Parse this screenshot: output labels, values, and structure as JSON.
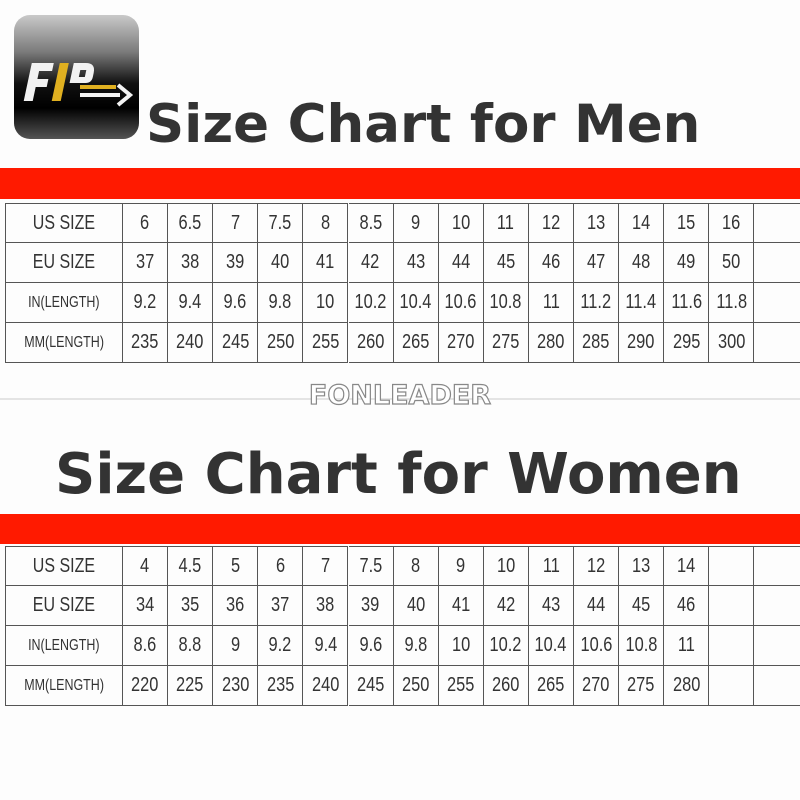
{
  "logo": {
    "text": "FLD"
  },
  "watermark": "FONLEADER",
  "colors": {
    "band": "#ff1a00",
    "title": "#333333",
    "grid": "#555555"
  },
  "men": {
    "title": "Size Chart for Men",
    "rows": [
      {
        "label": "US SIZE",
        "values": [
          "6",
          "6.5",
          "7",
          "7.5",
          "8",
          "8.5",
          "9",
          "10",
          "11",
          "12",
          "13",
          "14",
          "15",
          "16"
        ]
      },
      {
        "label": "EU SIZE",
        "values": [
          "37",
          "38",
          "39",
          "40",
          "41",
          "42",
          "43",
          "44",
          "45",
          "46",
          "47",
          "48",
          "49",
          "50"
        ]
      },
      {
        "label": "IN(LENGTH)",
        "values": [
          "9.2",
          "9.4",
          "9.6",
          "9.8",
          "10",
          "10.2",
          "10.4",
          "10.6",
          "10.8",
          "11",
          "11.2",
          "11.4",
          "11.6",
          "11.8"
        ]
      },
      {
        "label": "MM(LENGTH)",
        "values": [
          "235",
          "240",
          "245",
          "250",
          "255",
          "260",
          "265",
          "270",
          "275",
          "280",
          "285",
          "290",
          "295",
          "300"
        ]
      }
    ]
  },
  "women": {
    "title": "Size Chart for Women",
    "rows": [
      {
        "label": "US SIZE",
        "values": [
          "4",
          "4.5",
          "5",
          "6",
          "7",
          "7.5",
          "8",
          "9",
          "10",
          "11",
          "12",
          "13",
          "14"
        ]
      },
      {
        "label": "EU SIZE",
        "values": [
          "34",
          "35",
          "36",
          "37",
          "38",
          "39",
          "40",
          "41",
          "42",
          "43",
          "44",
          "45",
          "46"
        ]
      },
      {
        "label": "IN(LENGTH)",
        "values": [
          "8.6",
          "8.8",
          "9",
          "9.2",
          "9.4",
          "9.6",
          "9.8",
          "10",
          "10.2",
          "10.4",
          "10.6",
          "10.8",
          "11"
        ]
      },
      {
        "label": "MM(LENGTH)",
        "values": [
          "220",
          "225",
          "230",
          "235",
          "240",
          "245",
          "250",
          "255",
          "260",
          "265",
          "270",
          "275",
          "280"
        ]
      }
    ]
  }
}
